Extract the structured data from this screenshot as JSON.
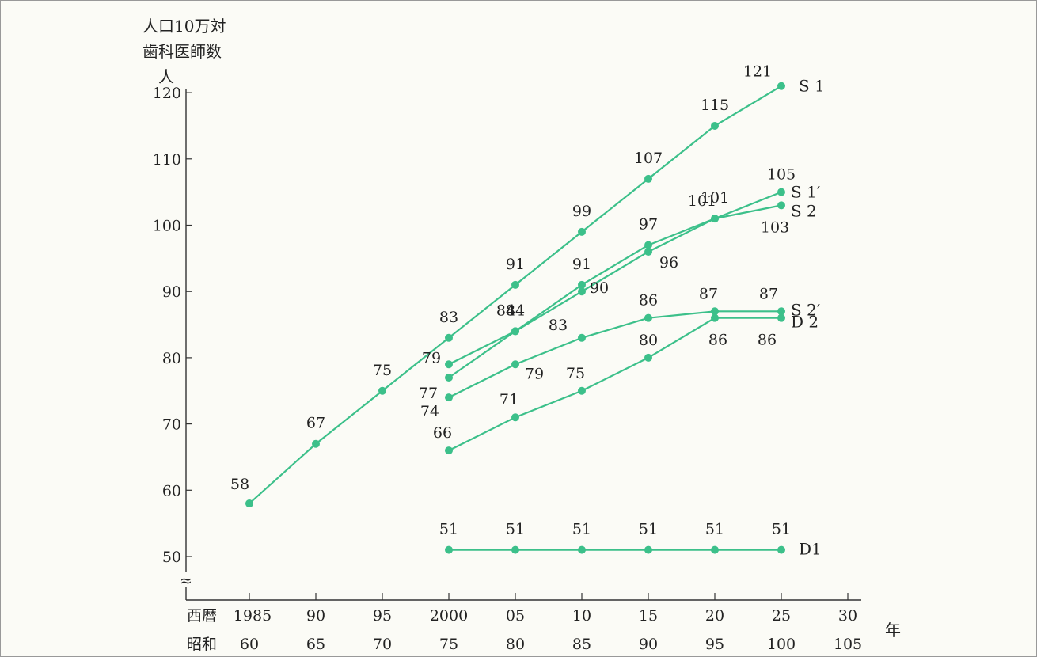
{
  "chart_data": {
    "type": "line",
    "ylabel": [
      "人口10万対",
      "歯科医師数",
      "人"
    ],
    "ylim": [
      50,
      120
    ],
    "yticks": [
      50,
      60,
      70,
      80,
      90,
      100,
      110,
      120
    ],
    "x": [
      1985,
      1990,
      1995,
      2000,
      2005,
      2010,
      2015,
      2020,
      2025,
      2030
    ],
    "xtick_rows": [
      {
        "label": "西暦",
        "ticks": [
          "1985",
          "90",
          "95",
          "2000",
          "05",
          "10",
          "15",
          "20",
          "25",
          "30"
        ]
      },
      {
        "label": "昭和",
        "ticks": [
          "60",
          "65",
          "70",
          "75",
          "80",
          "85",
          "90",
          "95",
          "100",
          "105"
        ]
      }
    ],
    "xunit": "年",
    "axis_break": "≈",
    "grid": false,
    "color": "#3cc08a",
    "series": [
      {
        "name": "S 1",
        "x": [
          1985,
          1990,
          1995,
          2000,
          2005,
          2010,
          2015,
          2020,
          2025
        ],
        "values": [
          58,
          67,
          75,
          83,
          91,
          99,
          107,
          115,
          121
        ]
      },
      {
        "name": "S 1′",
        "x": [
          2000,
          2005,
          2010,
          2015,
          2020,
          2025
        ],
        "values": [
          77,
          84,
          90,
          96,
          101,
          105
        ]
      },
      {
        "name": "S 2",
        "x": [
          2000,
          2005,
          2010,
          2015,
          2020,
          2025
        ],
        "values": [
          79,
          84,
          91,
          97,
          101,
          103
        ]
      },
      {
        "name": "S 2′",
        "x": [
          2000,
          2005,
          2010,
          2015,
          2020,
          2025
        ],
        "values": [
          74,
          79,
          83,
          86,
          87,
          87
        ]
      },
      {
        "name": "D 2",
        "x": [
          2000,
          2005,
          2010,
          2015,
          2020,
          2025
        ],
        "values": [
          66,
          71,
          75,
          80,
          86,
          86
        ]
      },
      {
        "name": "D1",
        "x": [
          2000,
          2005,
          2010,
          2015,
          2020,
          2025
        ],
        "values": [
          51,
          51,
          51,
          51,
          51,
          51
        ]
      }
    ]
  }
}
